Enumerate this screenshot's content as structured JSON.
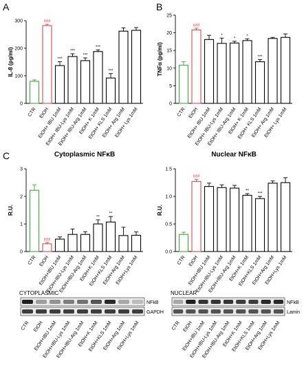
{
  "panel_letters": {
    "a": "A",
    "b": "B",
    "c": "C"
  },
  "chart_data": [
    {
      "id": "A",
      "type": "bar",
      "categories": [
        "CTR",
        "EtOH",
        "EtOH+ IBU 1mM",
        "EtOH+ IBU-Lys 1mM",
        "EtOH+ IBU-Arg 1mM",
        "EtOH+ K 1mM",
        "EtOH+ KLS 1mM",
        "EtOH+ Arg 1mM",
        "EtOH+ Lys 1mM"
      ],
      "values": [
        80,
        282,
        137,
        170,
        155,
        188,
        92,
        262,
        265
      ],
      "errors": [
        5,
        5,
        14,
        10,
        10,
        6,
        16,
        12,
        10
      ],
      "significance": [
        "",
        "###",
        "***",
        "***",
        "***",
        "***",
        "***",
        "",
        ""
      ],
      "title": "",
      "xlabel": "",
      "ylabel": "IL-8 (pg/ml)",
      "ylim": [
        0,
        300
      ],
      "yticks": [
        "0",
        "100",
        "200",
        "300"
      ],
      "bar_colors": [
        "#3aa935",
        "#e0474c",
        "#000",
        "#000",
        "#000",
        "#000",
        "#000",
        "#000",
        "#000"
      ]
    },
    {
      "id": "B",
      "type": "bar",
      "categories": [
        "CTR",
        "EtOH",
        "EtOH+ IBU 1mM",
        "EtOH+ IBU-Lys 1mM",
        "EtOH+ IBU-Arg 1mM",
        "EtOH+ K 1mM",
        "EtOH+ KLS 1mM",
        "EtOH+ Arg 1mM",
        "EtOH+ Lys 1mM"
      ],
      "values": [
        10.8,
        20.8,
        18.1,
        17.0,
        17.1,
        17.8,
        11.8,
        18.4,
        18.7
      ],
      "errors": [
        1.0,
        0.5,
        1.2,
        1.5,
        0.5,
        0.5,
        0.6,
        0.3,
        1.0
      ],
      "significance": [
        "",
        "###",
        "",
        "*",
        "*",
        "*",
        "***",
        "",
        ""
      ],
      "title": "",
      "xlabel": "",
      "ylabel": "TNFα (pg/ml)",
      "ylim": [
        0,
        25
      ],
      "yticks": [
        "0",
        "5",
        "10",
        "15",
        "20",
        "25"
      ],
      "bar_colors": [
        "#3aa935",
        "#e0474c",
        "#000",
        "#000",
        "#000",
        "#000",
        "#000",
        "#000",
        "#000"
      ]
    },
    {
      "id": "C1",
      "type": "bar",
      "categories": [
        "CTR",
        "EtOH",
        "EtOH+IBU 1mM",
        "EtOH+IBU-Lys 1mM",
        "EtOH+IBU-Arg 1mM",
        "EtOH+K 1mM",
        "EtOH+KLS 1mM",
        "EtOH+Arg 1mM",
        "EtOH+Lys 1mM"
      ],
      "values": [
        2.22,
        0.28,
        0.45,
        0.62,
        0.62,
        1.0,
        1.07,
        0.58,
        0.59
      ],
      "errors": [
        0.2,
        0.05,
        0.08,
        0.2,
        0.1,
        0.15,
        0.2,
        0.3,
        0.12
      ],
      "significance": [
        "",
        "###",
        "",
        "",
        "",
        "**",
        "**",
        "",
        ""
      ],
      "title": "Cytoplasmic NFκB",
      "xlabel": "",
      "ylabel": "R.U.",
      "ylim": [
        0,
        3
      ],
      "yticks": [
        "0",
        "1",
        "2",
        "3"
      ],
      "bar_colors": [
        "#3aa935",
        "#e0474c",
        "#000",
        "#000",
        "#000",
        "#000",
        "#000",
        "#000",
        "#000"
      ]
    },
    {
      "id": "C2",
      "type": "bar",
      "categories": [
        "CTR",
        "EtOH",
        "EtOH+IBU 1mM",
        "EtOH+IBU-Lys 1mM",
        "EtOH+IBU-Arg 1mM",
        "EtOH+K 1mM",
        "EtOH+KLS 1mM",
        "EtOH+Arg 1mM",
        "EtOH+Lys 1mM"
      ],
      "values": [
        0.31,
        1.27,
        1.18,
        1.16,
        1.15,
        1.02,
        0.96,
        1.24,
        1.25
      ],
      "errors": [
        0.04,
        0.04,
        0.06,
        0.05,
        0.05,
        0.03,
        0.04,
        0.04,
        0.09
      ],
      "significance": [
        "",
        "###",
        "",
        "",
        "",
        "**",
        "***",
        "",
        ""
      ],
      "title": "Nuclear NFκB",
      "xlabel": "",
      "ylabel": "R.U.",
      "ylim": [
        0,
        1.5
      ],
      "yticks": [
        "0.0",
        "0.5",
        "1.0",
        "1.5"
      ],
      "bar_colors": [
        "#3aa935",
        "#e0474c",
        "#000",
        "#000",
        "#000",
        "#000",
        "#000",
        "#000",
        "#000"
      ]
    }
  ],
  "blots": [
    {
      "id": "cyto",
      "title": "CYTOPLASMIC",
      "bands": [
        {
          "label": "NFkB",
          "intensity": [
            0.95,
            0.35,
            0.4,
            0.5,
            0.55,
            0.7,
            0.9,
            0.3,
            0.2
          ]
        },
        {
          "label": "GAPDH",
          "intensity": [
            0.8,
            0.8,
            0.8,
            0.8,
            0.8,
            0.8,
            0.8,
            0.8,
            0.8
          ]
        }
      ],
      "lanes": [
        "CTR",
        "EtOH",
        "EtOH+IBU 1mM",
        "EtOH+IBU-Lys 1mM",
        "EtOH+IBU-Arg 1mM",
        "EtOH+K 1mM",
        "EtOH+KLS 1mM",
        "EtOH+Arg 1mM",
        "EtOH+Lys 1mM"
      ]
    },
    {
      "id": "nuc",
      "title": "NUCLEAR",
      "bands": [
        {
          "label": "NFkB",
          "intensity": [
            0.3,
            0.95,
            0.85,
            0.85,
            0.85,
            0.8,
            0.8,
            0.9,
            0.9
          ]
        },
        {
          "label": "Lamin",
          "intensity": [
            0.7,
            0.7,
            0.7,
            0.7,
            0.7,
            0.7,
            0.7,
            0.7,
            0.7
          ]
        }
      ],
      "lanes": [
        "CTR",
        "EtOH",
        "EtOH+IBU 1mM",
        "EtOH+IBU-Lys 1mM",
        "EtOH+IBU-Arg 1mM",
        "EtOH+K 1mM",
        "EtOH+KLS 1mM",
        "EtOH+Arg 1mM",
        "EtOH+Lys 1mM"
      ]
    }
  ]
}
